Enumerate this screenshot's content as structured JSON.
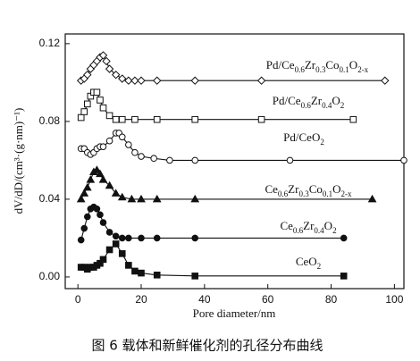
{
  "chart_data": {
    "type": "line",
    "xlabel": "Pore diameter/nm",
    "ylabel": "dV/dD/(cm³·(g·nm)⁻¹)",
    "caption": "图 6   载体和新鲜催化剂的孔径分布曲线",
    "xlim": [
      -4,
      103
    ],
    "ylim": [
      -0.006,
      0.125
    ],
    "xticks": [
      0,
      20,
      40,
      60,
      80,
      100
    ],
    "yticks": [
      {
        "value": 0,
        "label": "0.00"
      },
      {
        "value": 0.04,
        "label": "0.04"
      },
      {
        "value": 0.08,
        "label": "0.08"
      },
      {
        "value": 0.12,
        "label": "0.12"
      }
    ],
    "series": [
      {
        "name": "CeO2",
        "color": "#111111",
        "marker": "square",
        "filled": true,
        "x": [
          1,
          2,
          3,
          4,
          5,
          6,
          7,
          8,
          10,
          12,
          14,
          16,
          18,
          20,
          25,
          37,
          84
        ],
        "values": [
          0.005,
          0.005,
          0.004,
          0.005,
          0.005,
          0.006,
          0.007,
          0.009,
          0.014,
          0.017,
          0.012,
          0.006,
          0.003,
          0.002,
          0.001,
          0.0005,
          0.0005
        ]
      },
      {
        "name": "Ce0.6Zr0.4O2",
        "color": "#111111",
        "marker": "circle",
        "filled": true,
        "x": [
          1,
          2,
          3,
          4,
          5,
          6,
          7,
          8,
          10,
          12,
          14,
          16,
          20,
          25,
          37,
          84
        ],
        "values": [
          0.019,
          0.025,
          0.031,
          0.035,
          0.036,
          0.035,
          0.032,
          0.028,
          0.023,
          0.021,
          0.02,
          0.02,
          0.02,
          0.02,
          0.02,
          0.02
        ]
      },
      {
        "name": "Ce0.6Zr0.3Co0.1O2-x",
        "color": "#111111",
        "marker": "triangle",
        "filled": true,
        "x": [
          1,
          2,
          3,
          4,
          5,
          6,
          7,
          8,
          10,
          12,
          14,
          17,
          20,
          25,
          37,
          93
        ],
        "values": [
          0.04,
          0.043,
          0.046,
          0.05,
          0.054,
          0.055,
          0.053,
          0.05,
          0.047,
          0.043,
          0.041,
          0.04,
          0.04,
          0.04,
          0.04,
          0.04
        ]
      },
      {
        "name": "Pd/CeO2",
        "color": "#111111",
        "marker": "circle",
        "filled": false,
        "x": [
          1,
          2,
          3,
          4,
          5,
          6,
          7,
          8,
          10,
          12,
          13,
          14,
          16,
          18,
          20,
          24,
          29,
          37,
          67,
          103
        ],
        "values": [
          0.066,
          0.066,
          0.064,
          0.063,
          0.064,
          0.066,
          0.067,
          0.067,
          0.07,
          0.074,
          0.074,
          0.072,
          0.068,
          0.064,
          0.062,
          0.061,
          0.06,
          0.06,
          0.06,
          0.06
        ]
      },
      {
        "name": "Pd/Ce0.6Zr0.4O2",
        "color": "#111111",
        "marker": "square",
        "filled": false,
        "x": [
          1,
          2,
          3,
          4,
          5,
          6,
          7,
          8,
          10,
          12,
          14,
          18,
          25,
          37,
          58,
          87
        ],
        "values": [
          0.082,
          0.085,
          0.089,
          0.093,
          0.095,
          0.095,
          0.091,
          0.087,
          0.083,
          0.081,
          0.081,
          0.081,
          0.081,
          0.081,
          0.081,
          0.081
        ]
      },
      {
        "name": "Pd/Ce0.6Zr0.3Co0.1O2-x",
        "color": "#111111",
        "marker": "diamond",
        "filled": false,
        "x": [
          1,
          2,
          3,
          4,
          5,
          6,
          7,
          8,
          9,
          10,
          12,
          14,
          16,
          18,
          20,
          25,
          37,
          58,
          97
        ],
        "values": [
          0.101,
          0.102,
          0.104,
          0.107,
          0.109,
          0.111,
          0.113,
          0.114,
          0.111,
          0.107,
          0.104,
          0.102,
          0.101,
          0.101,
          0.101,
          0.101,
          0.101,
          0.101,
          0.101
        ]
      }
    ]
  }
}
